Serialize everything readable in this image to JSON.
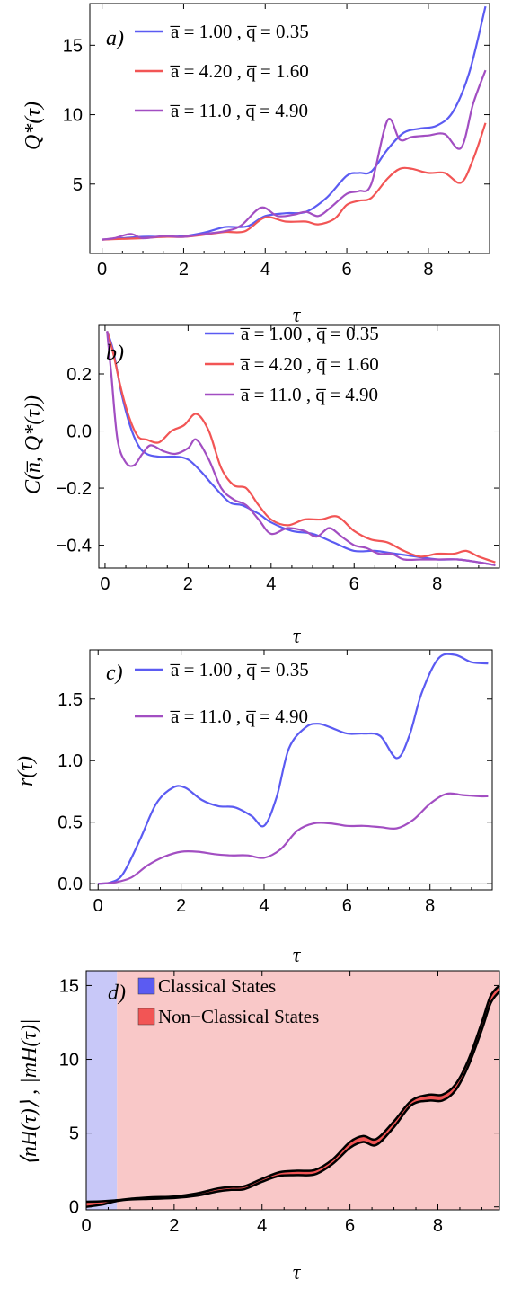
{
  "chart_data": [
    {
      "type": "line",
      "panel_label": "a)",
      "ylabel": "Q*(τ)",
      "xlabel": "τ",
      "xlim": [
        -0.3,
        9.5
      ],
      "ylim": [
        0,
        18
      ],
      "xticks": [
        "0",
        "2",
        "4",
        "6",
        "8"
      ],
      "yticks": [
        "5",
        "10",
        "15"
      ],
      "legend_position": "top-left",
      "series": [
        {
          "name": "a̅ = 1.00 ,   q̅ = 0.35",
          "color": "#5b5bf2",
          "x": [
            0,
            0.5,
            1,
            1.5,
            2,
            2.5,
            3,
            3.3,
            3.6,
            4,
            4.5,
            5,
            5.5,
            6,
            6.3,
            6.6,
            7,
            7.4,
            7.8,
            8.2,
            8.6,
            9,
            9.4
          ],
          "y": [
            1,
            1.1,
            1.2,
            1.2,
            1.25,
            1.5,
            1.9,
            1.9,
            2.0,
            2.7,
            2.9,
            3.0,
            4.0,
            5.6,
            5.8,
            5.9,
            7.5,
            8.7,
            9.0,
            9.2,
            10.2,
            13.0,
            17.8
          ]
        },
        {
          "name": "a̅ = 4.20 ,   q̅ = 1.60",
          "color": "#f25555",
          "x": [
            0,
            0.5,
            1,
            1.5,
            2,
            2.5,
            3,
            3.5,
            4,
            4.5,
            5,
            5.3,
            5.7,
            6,
            6.3,
            6.6,
            7,
            7.3,
            7.6,
            8,
            8.4,
            8.8,
            9.1,
            9.4
          ],
          "y": [
            1,
            1.05,
            1.1,
            1.2,
            1.2,
            1.35,
            1.55,
            1.6,
            2.6,
            2.3,
            2.3,
            2.1,
            2.5,
            3.5,
            3.8,
            4.0,
            5.4,
            6.1,
            6.1,
            5.8,
            5.8,
            5.1,
            6.8,
            9.4
          ]
        },
        {
          "name": "a̅ = 11.0 ,   q̅ = 4.90",
          "color": "#a24ec2",
          "x": [
            0,
            0.3,
            0.7,
            1,
            1.5,
            2,
            2.5,
            3,
            3.4,
            3.9,
            4.3,
            4.7,
            5,
            5.3,
            5.6,
            6,
            6.3,
            6.6,
            7,
            7.3,
            7.6,
            8,
            8.4,
            8.8,
            9.1,
            9.4
          ],
          "y": [
            1,
            1.1,
            1.4,
            1.1,
            1.25,
            1.2,
            1.4,
            1.6,
            2.0,
            3.3,
            2.7,
            2.8,
            3.0,
            2.7,
            3.3,
            4.3,
            4.5,
            5.0,
            9.6,
            8.2,
            8.4,
            8.5,
            8.6,
            7.6,
            10.8,
            13.2
          ]
        }
      ]
    },
    {
      "type": "line",
      "panel_label": "b)",
      "ylabel": "C(n̅, Q*(τ))",
      "xlabel": "τ",
      "xlim": [
        -0.15,
        9.5
      ],
      "ylim": [
        -0.48,
        0.37
      ],
      "xticks": [
        "0",
        "2",
        "4",
        "6",
        "8"
      ],
      "yticks": [
        "0.2",
        "0.0",
        "−0.2",
        "−0.4"
      ],
      "legend_position": "top",
      "series": [
        {
          "name": "a̅ = 1.00 ,   q̅ = 0.35",
          "color": "#5b5bf2",
          "x": [
            0.05,
            0.2,
            0.4,
            0.6,
            0.8,
            1.0,
            1.3,
            1.7,
            2.0,
            2.3,
            2.6,
            3.0,
            3.3,
            3.7,
            4.0,
            4.5,
            5.0,
            5.5,
            6.0,
            6.5,
            7.0,
            7.5,
            8.0,
            8.5,
            9.0,
            9.4
          ],
          "y": [
            0.35,
            0.28,
            0.13,
            0.02,
            -0.05,
            -0.08,
            -0.09,
            -0.09,
            -0.1,
            -0.14,
            -0.19,
            -0.25,
            -0.26,
            -0.29,
            -0.32,
            -0.35,
            -0.36,
            -0.39,
            -0.42,
            -0.42,
            -0.43,
            -0.44,
            -0.45,
            -0.45,
            -0.46,
            -0.47
          ]
        },
        {
          "name": "a̅ = 4.20 ,   q̅ = 1.60",
          "color": "#f25555",
          "x": [
            0.05,
            0.2,
            0.4,
            0.6,
            0.8,
            1.0,
            1.3,
            1.6,
            1.9,
            2.2,
            2.5,
            2.8,
            3.1,
            3.4,
            3.7,
            4.0,
            4.4,
            4.8,
            5.2,
            5.6,
            6.0,
            6.4,
            6.8,
            7.2,
            7.6,
            8.0,
            8.4,
            8.7,
            9.0,
            9.4
          ],
          "y": [
            0.35,
            0.27,
            0.14,
            0.04,
            -0.02,
            -0.03,
            -0.04,
            0.0,
            0.02,
            0.06,
            0.0,
            -0.13,
            -0.19,
            -0.2,
            -0.26,
            -0.31,
            -0.33,
            -0.31,
            -0.31,
            -0.3,
            -0.35,
            -0.38,
            -0.39,
            -0.42,
            -0.44,
            -0.43,
            -0.43,
            -0.42,
            -0.44,
            -0.46
          ]
        },
        {
          "name": "a̅ = 11.0 ,   q̅ = 4.90",
          "color": "#a24ec2",
          "x": [
            0.05,
            0.15,
            0.3,
            0.5,
            0.7,
            0.9,
            1.1,
            1.4,
            1.7,
            2.0,
            2.2,
            2.5,
            2.8,
            3.1,
            3.4,
            3.7,
            4.0,
            4.4,
            4.8,
            5.1,
            5.4,
            5.7,
            6.0,
            6.3,
            6.6,
            6.9,
            7.2,
            7.6,
            8.0,
            8.5,
            9.0,
            9.4
          ],
          "y": [
            0.35,
            0.2,
            -0.03,
            -0.11,
            -0.12,
            -0.08,
            -0.05,
            -0.07,
            -0.08,
            -0.06,
            -0.03,
            -0.1,
            -0.2,
            -0.24,
            -0.26,
            -0.31,
            -0.36,
            -0.34,
            -0.35,
            -0.37,
            -0.34,
            -0.37,
            -0.4,
            -0.41,
            -0.43,
            -0.43,
            -0.45,
            -0.45,
            -0.45,
            -0.45,
            -0.46,
            -0.47
          ]
        }
      ]
    },
    {
      "type": "line",
      "panel_label": "c)",
      "ylabel": "r(τ)",
      "xlabel": "τ",
      "xlim": [
        -0.2,
        9.5
      ],
      "ylim": [
        -0.05,
        1.9
      ],
      "xticks": [
        "0",
        "2",
        "4",
        "6",
        "8"
      ],
      "yticks": [
        "0.0",
        "0.5",
        "1.0",
        "1.5"
      ],
      "legend_position": "top-left",
      "series": [
        {
          "name": "a̅ = 1.00 ,   q̅ = 0.35",
          "color": "#5b5bf2",
          "x": [
            0,
            0.3,
            0.6,
            1.0,
            1.4,
            1.8,
            2.1,
            2.5,
            2.9,
            3.3,
            3.7,
            4.0,
            4.3,
            4.6,
            5.0,
            5.3,
            5.6,
            6.0,
            6.4,
            6.8,
            7.2,
            7.5,
            7.8,
            8.2,
            8.6,
            9.0,
            9.4
          ],
          "y": [
            0,
            0.01,
            0.08,
            0.35,
            0.65,
            0.78,
            0.78,
            0.68,
            0.63,
            0.62,
            0.55,
            0.47,
            0.7,
            1.1,
            1.27,
            1.3,
            1.27,
            1.22,
            1.22,
            1.2,
            1.02,
            1.2,
            1.55,
            1.83,
            1.86,
            1.8,
            1.79
          ]
        },
        {
          "name": "a̅ = 11.0 ,   q̅ = 4.90",
          "color": "#a24ec2",
          "x": [
            0,
            0.4,
            0.8,
            1.2,
            1.6,
            2.0,
            2.4,
            2.8,
            3.2,
            3.6,
            4.0,
            4.4,
            4.8,
            5.2,
            5.6,
            6.0,
            6.4,
            6.8,
            7.2,
            7.6,
            8.0,
            8.4,
            8.8,
            9.2,
            9.4
          ],
          "y": [
            0,
            0.01,
            0.05,
            0.15,
            0.22,
            0.26,
            0.26,
            0.24,
            0.23,
            0.23,
            0.21,
            0.28,
            0.43,
            0.49,
            0.49,
            0.47,
            0.47,
            0.46,
            0.45,
            0.52,
            0.65,
            0.73,
            0.72,
            0.71,
            0.71
          ]
        }
      ]
    },
    {
      "type": "area",
      "panel_label": "d)",
      "ylabel": "⟨nH(τ)⟩ ,    |mH(τ)|",
      "xlabel": "τ",
      "xlim": [
        0,
        9.4
      ],
      "ylim": [
        -0.2,
        16
      ],
      "xticks": [
        "0",
        "2",
        "4",
        "6",
        "8"
      ],
      "yticks": [
        "0",
        "5",
        "10",
        "15"
      ],
      "legend_position": "top-left",
      "regions": [
        {
          "name": "Classical States",
          "color": "#c8c8f8",
          "swatch": "#5b5bf2",
          "from": 0,
          "to": 0.7
        },
        {
          "name": "Non−Classical States",
          "color": "#f9c8c8",
          "swatch": "#f25555",
          "from": 0.7,
          "to": 9.4
        }
      ],
      "band_fill": "#f25555",
      "series": [
        {
          "name": "upper",
          "color": "#000000",
          "x": [
            0,
            0.35,
            0.7,
            1.0,
            1.5,
            2.0,
            2.5,
            3.0,
            3.3,
            3.6,
            4.0,
            4.4,
            4.8,
            5.2,
            5.6,
            6.0,
            6.3,
            6.6,
            7.0,
            7.4,
            7.8,
            8.1,
            8.4,
            8.7,
            9.0,
            9.2,
            9.4
          ],
          "y": [
            0.35,
            0.38,
            0.45,
            0.55,
            0.65,
            0.7,
            0.9,
            1.25,
            1.35,
            1.4,
            1.9,
            2.35,
            2.45,
            2.5,
            3.2,
            4.4,
            4.8,
            4.6,
            5.8,
            7.2,
            7.6,
            7.6,
            8.3,
            10.0,
            12.5,
            14.3,
            15.0
          ]
        },
        {
          "name": "lower",
          "color": "#000000",
          "x": [
            0,
            0.35,
            0.7,
            1.0,
            1.5,
            2.0,
            2.5,
            3.0,
            3.3,
            3.6,
            4.0,
            4.4,
            4.8,
            5.2,
            5.6,
            6.0,
            6.3,
            6.6,
            7.0,
            7.4,
            7.8,
            8.1,
            8.4,
            8.7,
            9.0,
            9.2,
            9.4
          ],
          "y": [
            0.0,
            0.15,
            0.4,
            0.5,
            0.55,
            0.6,
            0.75,
            1.05,
            1.15,
            1.2,
            1.7,
            2.1,
            2.15,
            2.2,
            2.9,
            4.0,
            4.4,
            4.2,
            5.4,
            6.9,
            7.2,
            7.2,
            7.9,
            9.6,
            12.0,
            13.8,
            14.6
          ]
        }
      ]
    }
  ]
}
